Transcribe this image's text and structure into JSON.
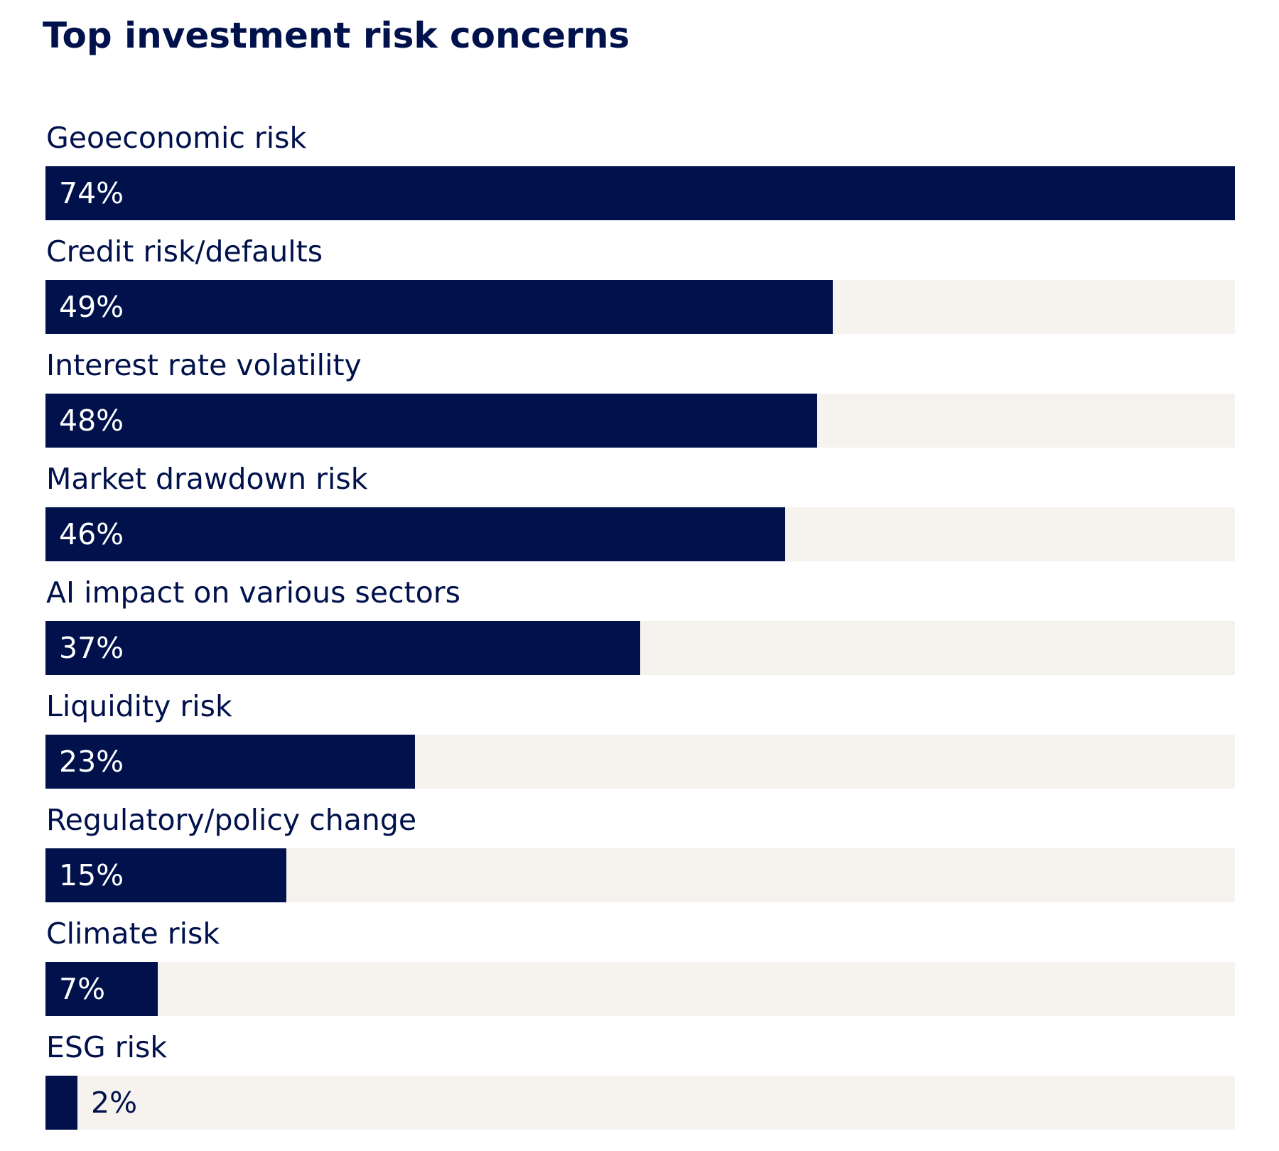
{
  "chart_data": {
    "type": "bar",
    "orientation": "horizontal",
    "title": "Top investment risk concerns",
    "categories": [
      "Geoeconomic risk",
      "Credit risk/defaults",
      "Interest rate volatility",
      "Market drawdown risk",
      "AI impact on various sectors",
      "Liquidity risk",
      "Regulatory/policy change",
      "Climate risk",
      "ESG risk"
    ],
    "values": [
      74,
      49,
      48,
      46,
      37,
      23,
      15,
      7,
      2
    ],
    "value_labels": [
      "74%",
      "49%",
      "48%",
      "46%",
      "37%",
      "23%",
      "15%",
      "7%",
      "2%"
    ],
    "unit": "%",
    "xlim": [
      0,
      74
    ],
    "grid": false,
    "legend": "none",
    "colors": {
      "bar": "#00114b",
      "track": "#f6f3ef",
      "text": "#00114b",
      "label_inside": "#ffffff"
    }
  }
}
